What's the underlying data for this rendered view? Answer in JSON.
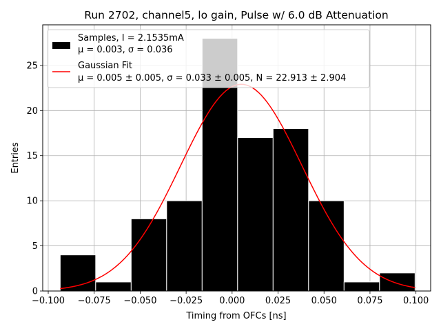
{
  "chart_data": {
    "type": "bar",
    "title": "Run 2702, channel5, lo gain, Pulse w/ 6.0 dB Attenuation",
    "xlabel": "Timing from OFCs [ns]",
    "ylabel": "Entries",
    "xlim": [
      -0.103,
      0.108
    ],
    "ylim": [
      0,
      29.5
    ],
    "grid": true,
    "xticks": [
      -0.1,
      -0.075,
      -0.05,
      -0.025,
      0.0,
      0.025,
      0.05,
      0.075,
      0.1
    ],
    "xtick_labels": [
      "−0.100",
      "−0.075",
      "−0.050",
      "−0.025",
      "0.000",
      "0.025",
      "0.050",
      "0.075",
      "0.100"
    ],
    "yticks": [
      0,
      5,
      10,
      15,
      20,
      25
    ],
    "ytick_labels": [
      "0",
      "5",
      "10",
      "15",
      "20",
      "25"
    ],
    "bin_edges": [
      -0.0935,
      -0.0742,
      -0.0549,
      -0.0356,
      -0.0163,
      0.003,
      0.0223,
      0.0416,
      0.0609,
      0.0802,
      0.0995
    ],
    "series": [
      {
        "name": "Samples",
        "type": "bar",
        "values": [
          4,
          1,
          8,
          10,
          28,
          17,
          18,
          10,
          1,
          2
        ],
        "color": "#000000",
        "legend_lines": [
          "Samples, I = 2.1535mA",
          "μ = 0.003, σ = 0.036"
        ]
      },
      {
        "name": "Gaussian Fit",
        "type": "line",
        "color": "#ff0000",
        "mu": 0.005,
        "sigma": 0.033,
        "N": 22.913,
        "legend_lines": [
          "Gaussian Fit",
          "μ = 0.005 ± 0.005, σ = 0.033 ± 0.005, N = 22.913 ± 2.904"
        ]
      }
    ],
    "legend_position": "upper-left",
    "colors": {
      "bar": "#000000",
      "bar_edge": "#ffffff",
      "fit": "#ff0000",
      "grid": "#b0b0b0"
    }
  }
}
